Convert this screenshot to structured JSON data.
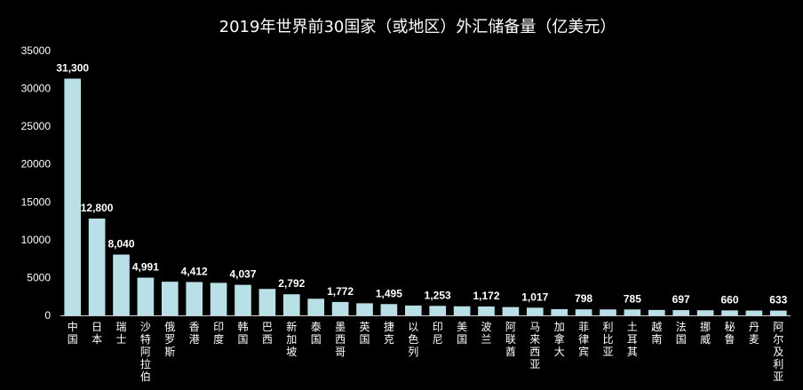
{
  "chart_data": {
    "type": "bar",
    "title": "2019年世界前30国家（或地区）外汇储备量（亿美元）",
    "xlabel": "",
    "ylabel": "",
    "ylim": [
      0,
      35000
    ],
    "yticks": [
      "0",
      "5000",
      "10000",
      "15000",
      "20000",
      "25000",
      "30000",
      "35000"
    ],
    "grid": false,
    "bar_color": "#b8e0e6",
    "categories": [
      "中国",
      "日本",
      "瑞士",
      "沙特阿拉伯",
      "俄罗斯",
      "香港",
      "印度",
      "韩国",
      "巴西",
      "新加坡",
      "泰国",
      "墨西哥",
      "英国",
      "捷克",
      "以色列",
      "印尼",
      "美国",
      "波兰",
      "阿联酋",
      "马来西亚",
      "加拿大",
      "菲律宾",
      "利比亚",
      "土耳其",
      "越南",
      "法国",
      "挪威",
      "秘鲁",
      "丹麦",
      "阿尔及利亚"
    ],
    "values": [
      31300,
      12800,
      8040,
      4991,
      4450,
      4412,
      4300,
      4037,
      3500,
      2792,
      2200,
      1772,
      1600,
      1495,
      1300,
      1253,
      1200,
      1172,
      1100,
      1017,
      820,
      798,
      790,
      785,
      720,
      697,
      680,
      660,
      640,
      633
    ],
    "data_labels": [
      "31,300",
      "12,800",
      "8,040",
      "4,991",
      "",
      "4,412",
      "",
      "4,037",
      "",
      "2,792",
      "",
      "1,772",
      "",
      "1,495",
      "",
      "1,253",
      "",
      "1,172",
      "",
      "1,017",
      "",
      "798",
      "",
      "785",
      "",
      "697",
      "",
      "660",
      "",
      "633"
    ]
  }
}
